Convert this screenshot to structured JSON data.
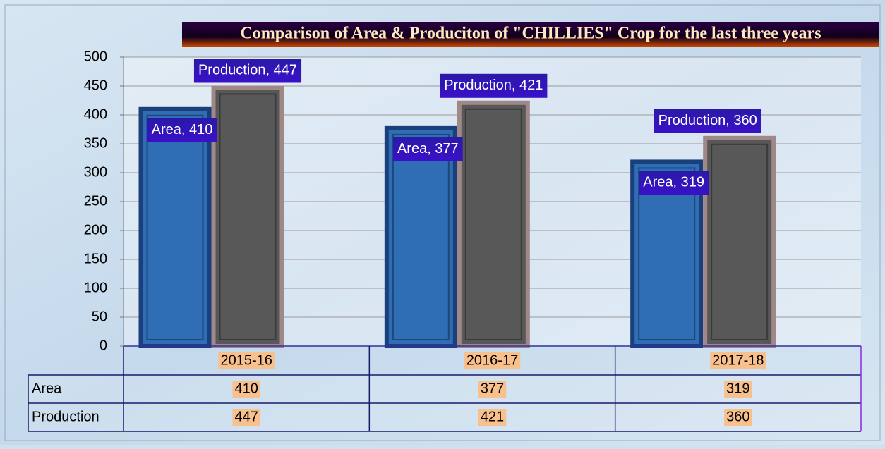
{
  "chart_data": {
    "type": "bar",
    "title": "Comparison of Area & Produciton of \"CHILLIES\" Crop for the last three years",
    "categories": [
      "2015-16",
      "2016-17",
      "2017-18"
    ],
    "series": [
      {
        "name": "Area",
        "color": "#2f6db5",
        "values": [
          410,
          377,
          319
        ],
        "value_labels": [
          "Area, 410",
          "Area, 377",
          "Area, 319"
        ]
      },
      {
        "name": "Production",
        "color": "#585858",
        "values": [
          447,
          421,
          360
        ],
        "value_labels": [
          "Production, 447",
          "Production, 421",
          "Production, 360"
        ]
      }
    ],
    "ylim": [
      0,
      500
    ],
    "yticks": [
      0,
      50,
      100,
      150,
      200,
      250,
      300,
      350,
      400,
      450,
      500
    ],
    "grid": true
  }
}
